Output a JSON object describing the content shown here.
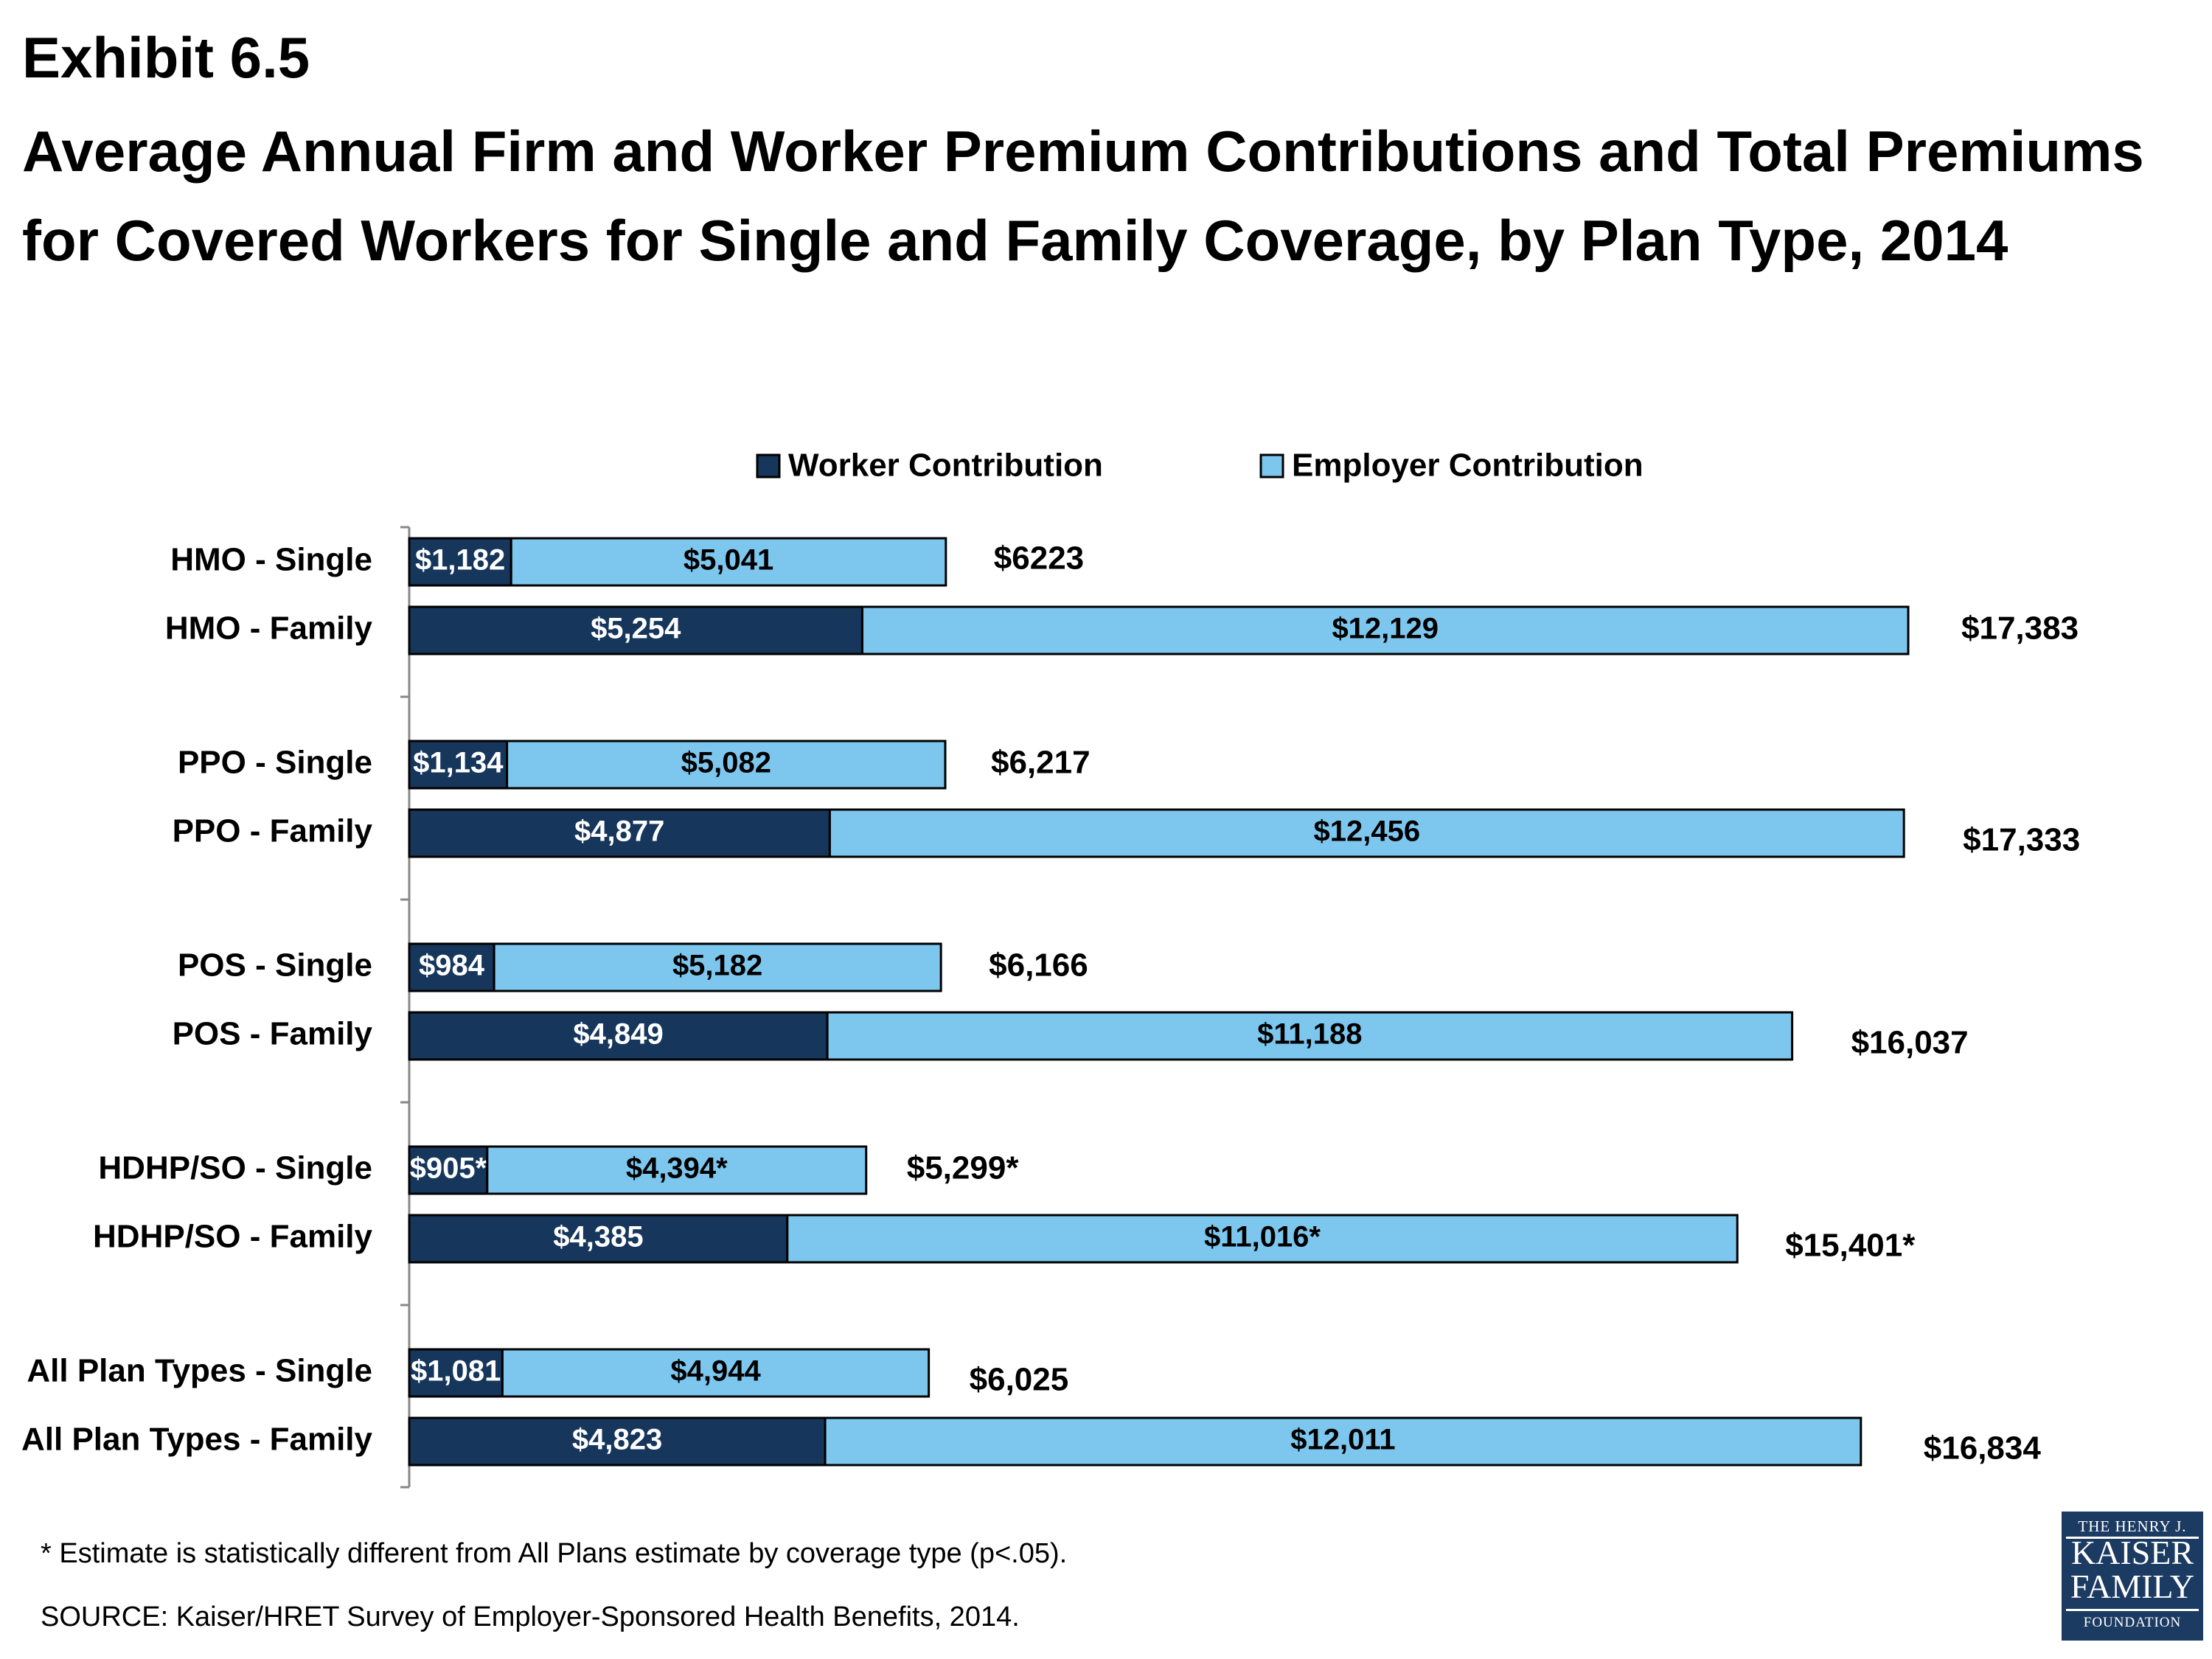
{
  "exhibit": "Exhibit 6.5",
  "title": "Average Annual Firm and Worker Premium Contributions and Total Premiums for Covered Workers for Single and Family Coverage, by Plan Type, 2014",
  "footnote": "* Estimate is statistically different from All Plans estimate by coverage type (p<.05).",
  "source": "SOURCE:  Kaiser/HRET Survey of Employer-Sponsored Health Benefits, 2014.",
  "logo": {
    "line1": "THE HENRY J.",
    "line2": "KAISER",
    "line3": "FAMILY",
    "line4": "FOUNDATION"
  },
  "colors": {
    "worker": "#16365c",
    "employer": "#7dc7ef",
    "border": "#000000"
  },
  "chart_data": {
    "type": "bar",
    "orientation": "horizontal",
    "stacked": true,
    "legend_position": "top",
    "categories": [
      "HMO - Single",
      "HMO - Family",
      "PPO - Single",
      "PPO - Family",
      "POS - Single",
      "POS - Family",
      "HDHP/SO - Single",
      "HDHP/SO - Family",
      "All Plan Types - Single",
      "All Plan Types - Family"
    ],
    "series": [
      {
        "name": "Worker Contribution",
        "values": [
          1182,
          5254,
          1134,
          4877,
          984,
          4849,
          905,
          4385,
          1081,
          4823
        ],
        "labels": [
          "$1,182",
          "$5,254",
          "$1,134",
          "$4,877",
          "$984",
          "$4,849",
          "$905*",
          "$4,385",
          "$1,081",
          "$4,823"
        ]
      },
      {
        "name": "Employer Contribution",
        "values": [
          5041,
          12129,
          5082,
          12456,
          5182,
          11188,
          4394,
          11016,
          4944,
          12011
        ],
        "labels": [
          "$5,041",
          "$12,129",
          "$5,082",
          "$12,456",
          "$5,182",
          "$11,188",
          "$4,394*",
          "$11,016*",
          "$4,944",
          "$12,011"
        ]
      }
    ],
    "totals": [
      6223,
      17383,
      6217,
      17333,
      6166,
      16037,
      5299,
      15401,
      6025,
      16834
    ],
    "total_labels": [
      "$6223",
      "$17,383",
      "$6,217",
      "$17,333",
      "$6,166",
      "$16,037",
      "$5,299*",
      "$15,401*",
      "$6,025",
      "$16,834"
    ],
    "xlim": [
      0,
      17400
    ]
  }
}
